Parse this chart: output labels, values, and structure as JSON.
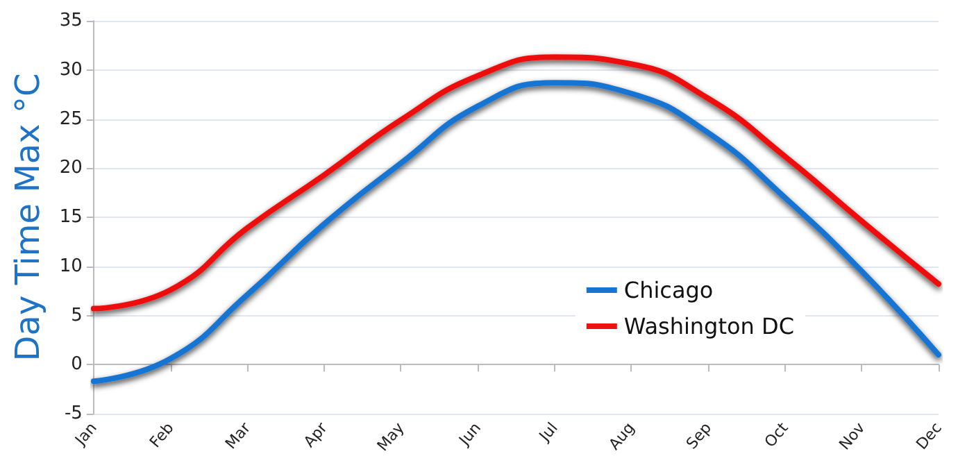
{
  "chart_data": {
    "type": "line",
    "ylabel": "Day Time Max °C",
    "categories": [
      "Jan",
      "Feb",
      "Mar",
      "Apr",
      "May",
      "Jun",
      "Jul",
      "Aug",
      "Sep",
      "Oct",
      "Nov",
      "Dec"
    ],
    "series": [
      {
        "name": "Chicago",
        "color": "#1874d2",
        "values": [
          -1.7,
          0.6,
          7.1,
          14.3,
          20.5,
          26.3,
          28.7,
          27.6,
          23.6,
          17,
          9.5,
          1
        ]
      },
      {
        "name": "Washington DC",
        "color": "#ee1111",
        "values": [
          5.7,
          7.6,
          13.9,
          19.3,
          24.9,
          29.4,
          31.3,
          30.6,
          27.1,
          21.2,
          14.6,
          8.2
        ]
      }
    ],
    "ylim": [
      -5,
      35
    ],
    "yticks": [
      -5,
      0,
      5,
      10,
      15,
      20,
      25,
      30,
      35
    ],
    "grid": "y",
    "legend": "right",
    "marker": "none",
    "line_style": "solid"
  }
}
